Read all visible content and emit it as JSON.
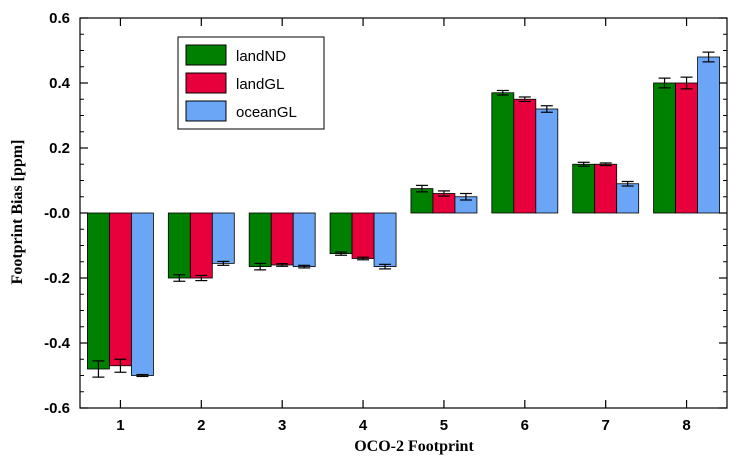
{
  "chart_data": {
    "type": "bar",
    "title": "",
    "xlabel": "OCO-2 Footprint",
    "ylabel": "Footprint Bias [ppm]",
    "categories": [
      "1",
      "2",
      "3",
      "4",
      "5",
      "6",
      "7",
      "8"
    ],
    "ylim": [
      -0.6,
      0.6
    ],
    "yticks": [
      -0.6,
      -0.4,
      -0.2,
      0.0,
      0.2,
      0.4,
      0.6
    ],
    "ytick_labels": [
      "-0.6",
      "-0.4",
      "-0.2",
      "-0.0",
      "0.2",
      "0.4",
      "0.6"
    ],
    "grid": false,
    "legend_position": "top-left",
    "series": [
      {
        "name": "landND",
        "color": "#008000",
        "values": [
          -0.48,
          -0.2,
          -0.165,
          -0.125,
          0.075,
          0.37,
          0.15,
          0.4
        ],
        "errors": [
          0.025,
          0.01,
          0.01,
          0.005,
          0.01,
          0.007,
          0.006,
          0.015
        ]
      },
      {
        "name": "landGL",
        "color": "#e8003c",
        "values": [
          -0.47,
          -0.2,
          -0.16,
          -0.14,
          0.06,
          0.35,
          0.15,
          0.4
        ],
        "errors": [
          0.02,
          0.008,
          0.004,
          0.004,
          0.008,
          0.007,
          0.004,
          0.018
        ]
      },
      {
        "name": "oceanGL",
        "color": "#6aa6f5",
        "values": [
          -0.5,
          -0.155,
          -0.165,
          -0.165,
          0.05,
          0.32,
          0.09,
          0.48
        ],
        "errors": [
          0.003,
          0.006,
          0.004,
          0.007,
          0.01,
          0.01,
          0.007,
          0.015
        ]
      }
    ]
  }
}
